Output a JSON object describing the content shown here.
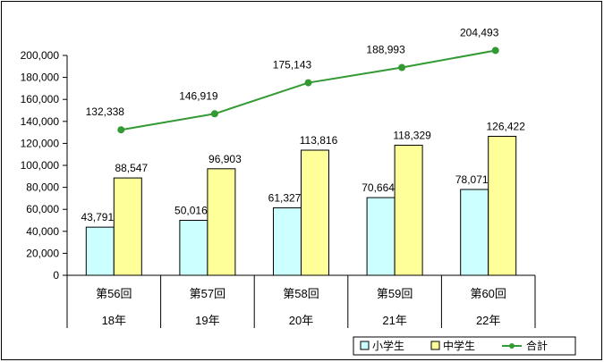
{
  "chart_data": {
    "type": "bar",
    "title": "",
    "xlabel": "",
    "ylabel": "",
    "ylim": [
      0,
      200000
    ],
    "ytick_step": 20000,
    "y_tick_labels": [
      "0",
      "20,000",
      "40,000",
      "60,000",
      "80,000",
      "100,000",
      "120,000",
      "140,000",
      "160,000",
      "180,000",
      "200,000"
    ],
    "categories": [
      {
        "round": "第56回",
        "year": "18年"
      },
      {
        "round": "第57回",
        "year": "19年"
      },
      {
        "round": "第58回",
        "year": "20年"
      },
      {
        "round": "第59回",
        "year": "21年"
      },
      {
        "round": "第60回",
        "year": "22年"
      }
    ],
    "series": [
      {
        "name": "小学生",
        "kind": "bar",
        "color": "#ccffff",
        "values": [
          43791,
          50016,
          61327,
          70664,
          78071
        ],
        "labels": [
          "43,791",
          "50,016",
          "61,327",
          "70,664",
          "78,071"
        ]
      },
      {
        "name": "中学生",
        "kind": "bar",
        "color": "#ffff99",
        "values": [
          88547,
          96903,
          113816,
          118329,
          126422
        ],
        "labels": [
          "88,547",
          "96,903",
          "113,816",
          "118,329",
          "126,422"
        ]
      },
      {
        "name": "合計",
        "kind": "line",
        "color": "#339933",
        "values": [
          132338,
          146919,
          175143,
          188993,
          204493
        ],
        "labels": [
          "132,338",
          "146,919",
          "175,143",
          "188,993",
          "204,493"
        ]
      }
    ],
    "legend_position": "bottom-right",
    "grid": false
  }
}
